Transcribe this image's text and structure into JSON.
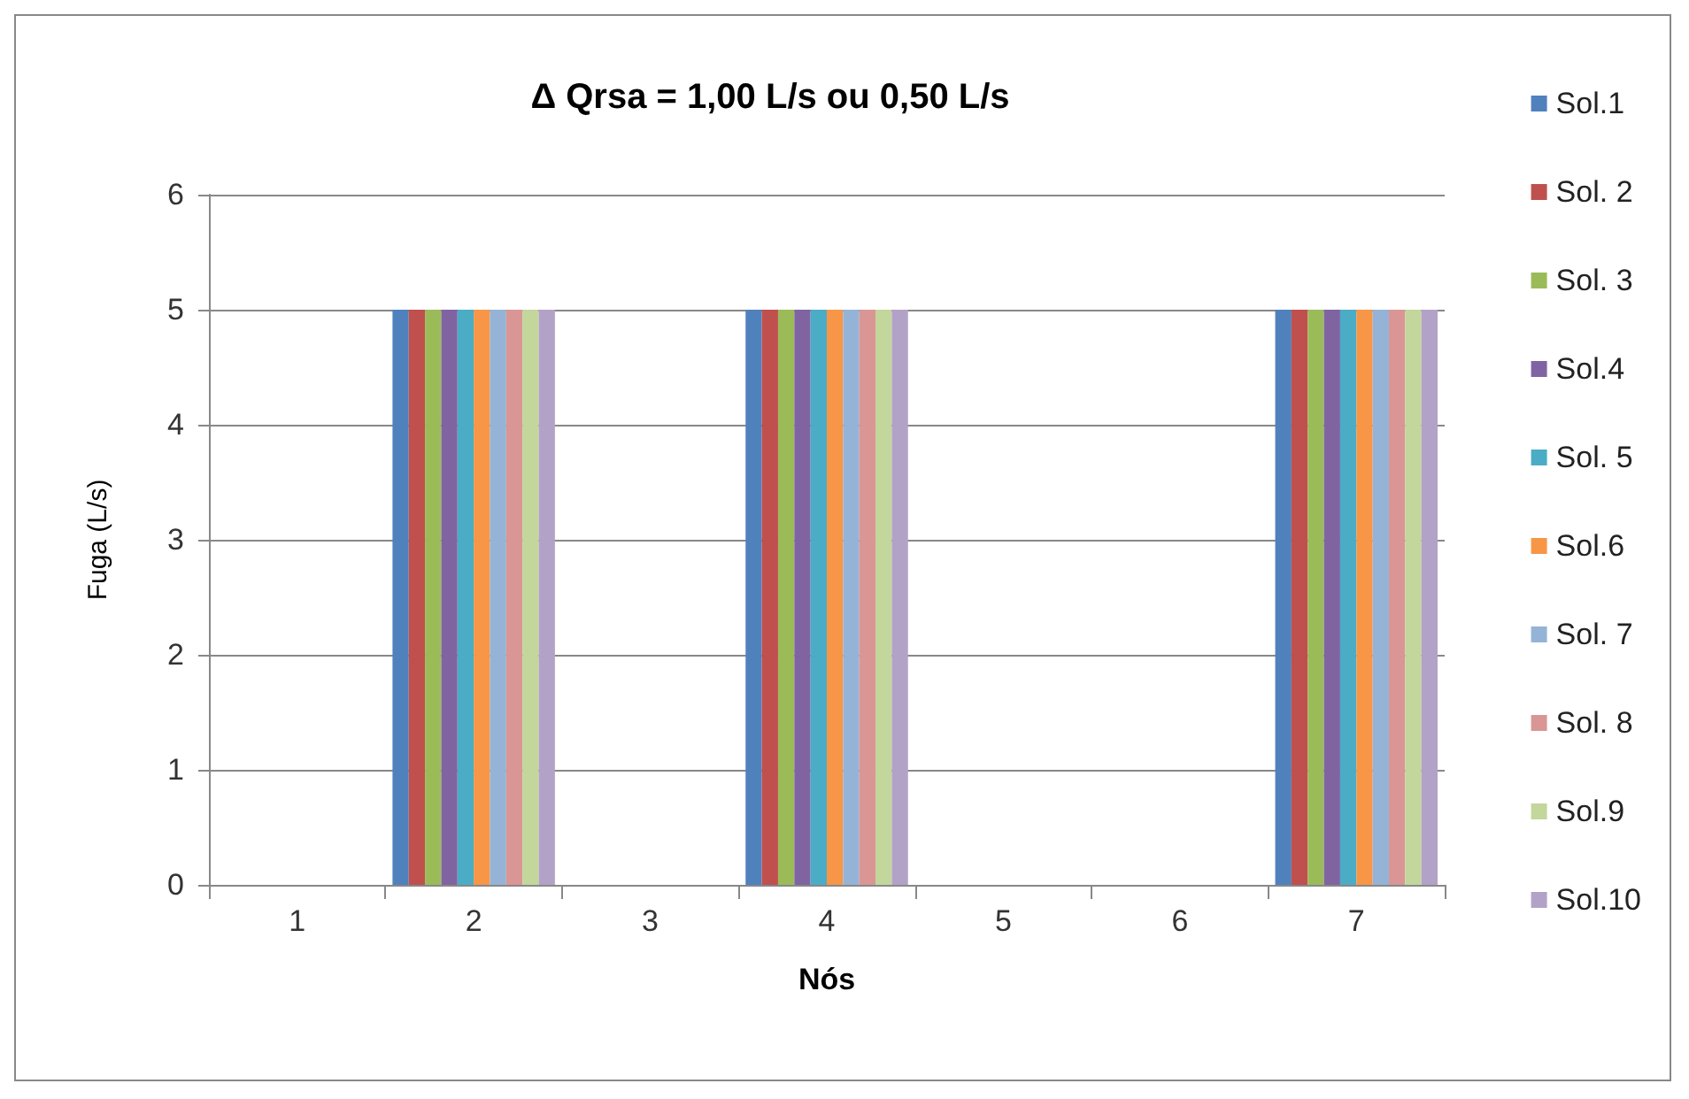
{
  "chart_data": {
    "type": "bar",
    "title": "Δ Qrsa = 1,00 L/s ou 0,50 L/s",
    "xlabel": "Nós",
    "ylabel": "Fuga (L/s)",
    "categories": [
      "1",
      "2",
      "3",
      "4",
      "5",
      "6",
      "7"
    ],
    "series": [
      {
        "name": "Sol.1",
        "color": "#4f81bd",
        "values": [
          0,
          5,
          0,
          5,
          0,
          0,
          5
        ]
      },
      {
        "name": "Sol. 2",
        "color": "#c0504d",
        "values": [
          0,
          5,
          0,
          5,
          0,
          0,
          5
        ]
      },
      {
        "name": "Sol. 3",
        "color": "#9bbb59",
        "values": [
          0,
          5,
          0,
          5,
          0,
          0,
          5
        ]
      },
      {
        "name": "Sol.4",
        "color": "#8064a2",
        "values": [
          0,
          5,
          0,
          5,
          0,
          0,
          5
        ]
      },
      {
        "name": "Sol. 5",
        "color": "#4bacc6",
        "values": [
          0,
          5,
          0,
          5,
          0,
          0,
          5
        ]
      },
      {
        "name": "Sol.6",
        "color": "#f79646",
        "values": [
          0,
          5,
          0,
          5,
          0,
          0,
          5
        ]
      },
      {
        "name": "Sol. 7",
        "color": "#95b3d7",
        "values": [
          0,
          5,
          0,
          5,
          0,
          0,
          5
        ]
      },
      {
        "name": "Sol. 8",
        "color": "#d99694",
        "values": [
          0,
          5,
          0,
          5,
          0,
          0,
          5
        ]
      },
      {
        "name": "Sol.9",
        "color": "#c3d69b",
        "values": [
          0,
          5,
          0,
          5,
          0,
          0,
          5
        ]
      },
      {
        "name": "Sol.10",
        "color": "#b3a2c7",
        "values": [
          0,
          5,
          0,
          5,
          0,
          0,
          5
        ]
      }
    ],
    "ylim": [
      0,
      6
    ],
    "yticks": [
      0,
      1,
      2,
      3,
      4,
      5,
      6
    ],
    "grid": "y",
    "legend": "right"
  }
}
